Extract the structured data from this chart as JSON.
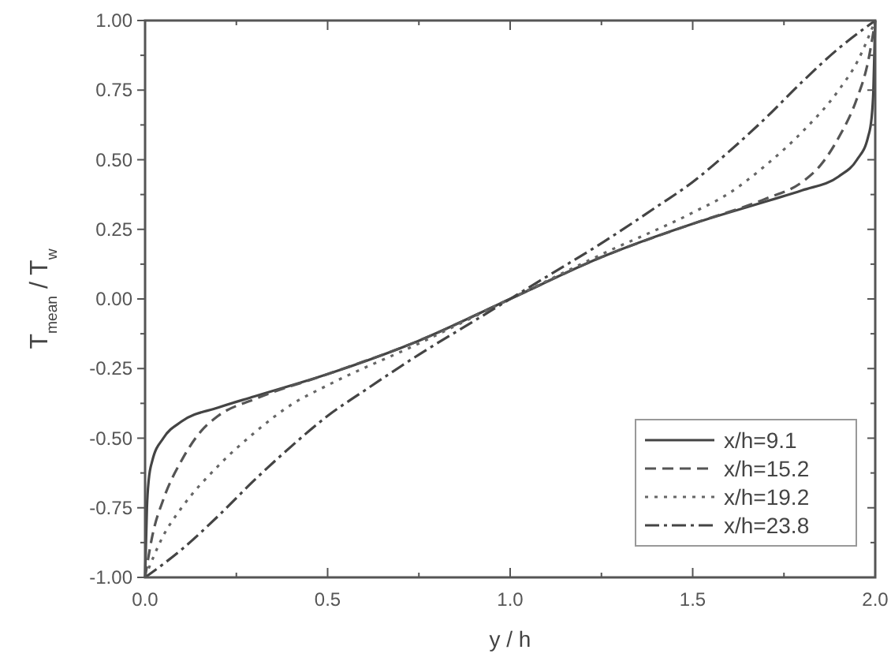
{
  "chart_data": {
    "type": "line",
    "xlabel": "y / h",
    "ylabel": "T$_{mean}$ / T$_{w}$",
    "xlim": [
      0,
      2
    ],
    "ylim": [
      -1,
      1
    ],
    "xticks": [
      {
        "value": 0,
        "label": "0.0"
      },
      {
        "value": 0.5,
        "label": "0.5"
      },
      {
        "value": 1,
        "label": "1.0"
      },
      {
        "value": 1.5,
        "label": "1.5"
      },
      {
        "value": 2,
        "label": "2.0"
      }
    ],
    "yticks": [
      {
        "value": -1,
        "label": "-1.00"
      },
      {
        "value": -0.75,
        "label": "-0.75"
      },
      {
        "value": -0.5,
        "label": "-0.50"
      },
      {
        "value": -0.25,
        "label": "-0.25"
      },
      {
        "value": 0,
        "label": "0.00"
      },
      {
        "value": 0.25,
        "label": "0.25"
      },
      {
        "value": 0.5,
        "label": "0.50"
      },
      {
        "value": 0.75,
        "label": "0.75"
      },
      {
        "value": 1,
        "label": "1.00"
      }
    ],
    "grid": false,
    "legend": "bottom right",
    "series": [
      {
        "name": "x/h=9.1",
        "color": "#444444",
        "line_style": "solid",
        "x": [
          0,
          0.005,
          0.01,
          0.02,
          0.05,
          0.1,
          0.2,
          0.3,
          0.5,
          0.75,
          1,
          1.25,
          1.5,
          1.7,
          1.8,
          1.9,
          1.95,
          1.98,
          1.99,
          1.995,
          2
        ],
        "values": [
          -1,
          -0.75,
          -0.65,
          -0.58,
          -0.5,
          -0.44,
          -0.39,
          -0.35,
          -0.27,
          -0.15,
          0,
          0.15,
          0.27,
          0.35,
          0.39,
          0.44,
          0.5,
          0.58,
          0.65,
          0.75,
          1
        ]
      },
      {
        "name": "x/h=15.2",
        "color": "#555555",
        "line_style": "dashed",
        "x": [
          0,
          0.02,
          0.05,
          0.1,
          0.15,
          0.2,
          0.3,
          0.5,
          0.75,
          1,
          1.25,
          1.5,
          1.7,
          1.8,
          1.85,
          1.9,
          1.95,
          1.98,
          2
        ],
        "values": [
          -1,
          -0.85,
          -0.72,
          -0.58,
          -0.48,
          -0.42,
          -0.36,
          -0.27,
          -0.15,
          0,
          0.15,
          0.27,
          0.36,
          0.42,
          0.48,
          0.58,
          0.72,
          0.85,
          1
        ]
      },
      {
        "name": "x/h=19.2",
        "color": "#666666",
        "line_style": "dotted",
        "x": [
          0,
          0.05,
          0.1,
          0.2,
          0.3,
          0.4,
          0.5,
          0.75,
          1,
          1.25,
          1.5,
          1.6,
          1.7,
          1.8,
          1.9,
          1.95,
          2
        ],
        "values": [
          -1,
          -0.85,
          -0.75,
          -0.6,
          -0.48,
          -0.38,
          -0.31,
          -0.16,
          0,
          0.16,
          0.31,
          0.38,
          0.48,
          0.6,
          0.75,
          0.85,
          1
        ]
      },
      {
        "name": "x/h=23.8",
        "color": "#444444",
        "line_style": "dashdot",
        "x": [
          0,
          0.1,
          0.2,
          0.3,
          0.4,
          0.5,
          0.6,
          0.75,
          0.9,
          1,
          1.1,
          1.25,
          1.4,
          1.5,
          1.6,
          1.7,
          1.8,
          1.9,
          2
        ],
        "values": [
          -1,
          -0.9,
          -0.78,
          -0.65,
          -0.53,
          -0.42,
          -0.33,
          -0.2,
          -0.08,
          0,
          0.08,
          0.2,
          0.33,
          0.42,
          0.53,
          0.65,
          0.78,
          0.9,
          1
        ]
      }
    ]
  }
}
